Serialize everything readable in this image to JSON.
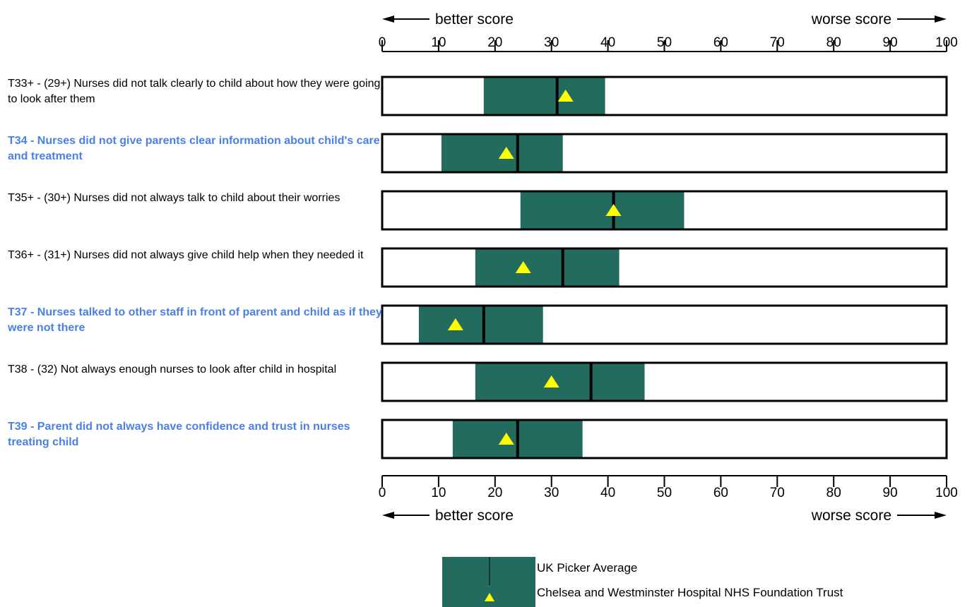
{
  "colors": {
    "band": "#226b5e",
    "marker": "#ffff00",
    "highlight_text": "#4a7fe6",
    "text": "#000000"
  },
  "chart_data": {
    "type": "range-bar",
    "xlim": [
      0,
      100
    ],
    "ticks": [
      0,
      10,
      20,
      30,
      40,
      50,
      60,
      70,
      80,
      90,
      100
    ],
    "direction_labels": {
      "left": "better score",
      "right": "worse score"
    },
    "rows": [
      {
        "label": "T33+ - (29+) Nurses did not talk clearly to child about how they were going to look after them",
        "highlight": false,
        "range": [
          18,
          39.5
        ],
        "picker_average": 31,
        "trust": 32.5
      },
      {
        "label": "T34 - Nurses did not give parents clear information about child's care and treatment",
        "highlight": true,
        "range": [
          10.5,
          32
        ],
        "picker_average": 24,
        "trust": 22
      },
      {
        "label": "T35+ - (30+) Nurses did not always talk to child about their worries",
        "highlight": false,
        "range": [
          24.5,
          53.5
        ],
        "picker_average": 41,
        "trust": 41
      },
      {
        "label": "T36+ - (31+) Nurses did not always give child help when they needed it",
        "highlight": false,
        "range": [
          16.5,
          42
        ],
        "picker_average": 32,
        "trust": 25
      },
      {
        "label": "T37 - Nurses talked to other staff in front of parent and child as if they were not there",
        "highlight": true,
        "range": [
          6.5,
          28.5
        ],
        "picker_average": 18,
        "trust": 13
      },
      {
        "label": "T38 - (32) Not always enough nurses to look after child in hospital",
        "highlight": false,
        "range": [
          16.5,
          46.5
        ],
        "picker_average": 37,
        "trust": 30
      },
      {
        "label": "T39 - Parent did not always have confidence and trust in nurses treating child",
        "highlight": true,
        "range": [
          12.5,
          35.5
        ],
        "picker_average": 24,
        "trust": 22
      }
    ],
    "legend": {
      "picker_average": "UK Picker Average",
      "trust": "Chelsea and Westminster Hospital NHS Foundation Trust"
    }
  }
}
